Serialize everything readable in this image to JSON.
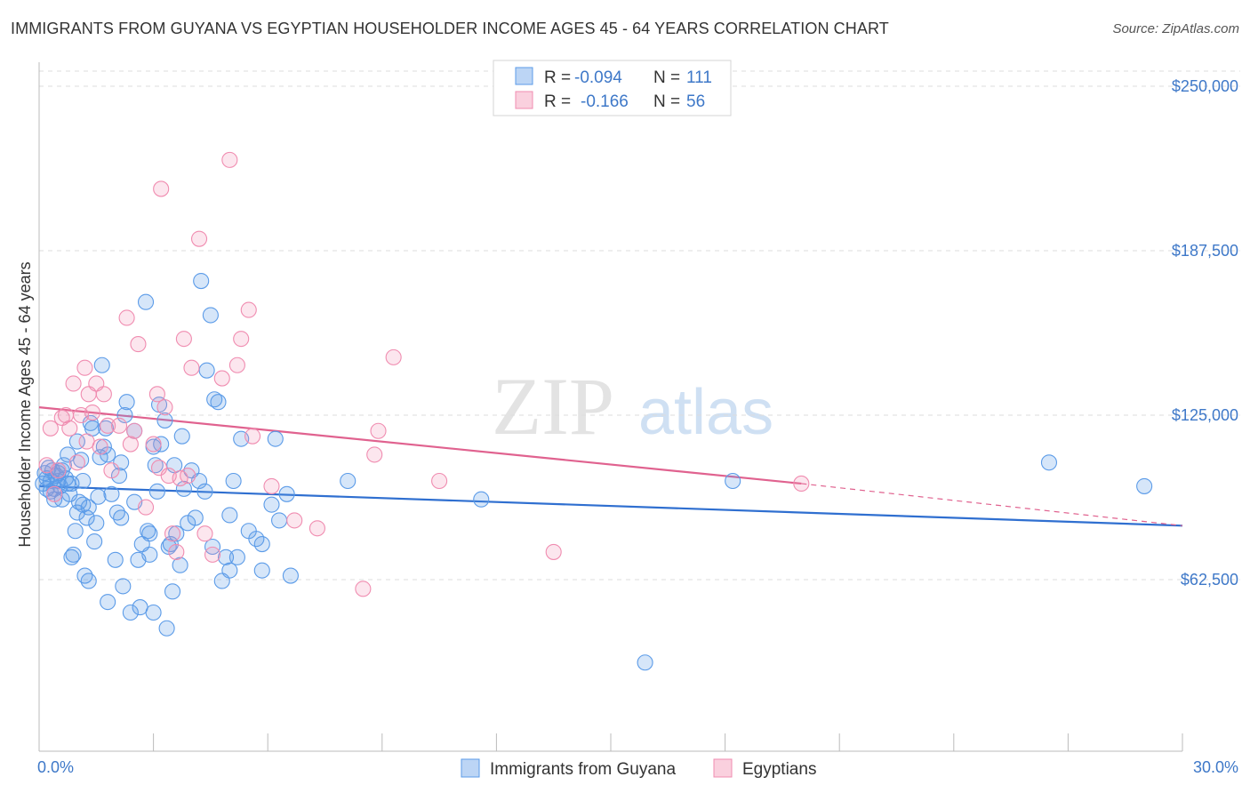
{
  "title": "IMMIGRANTS FROM GUYANA VS EGYPTIAN HOUSEHOLDER INCOME AGES 45 - 64 YEARS CORRELATION CHART",
  "source": "Source: ZipAtlas.com",
  "watermark": {
    "zip": "ZIP",
    "atlas": "atlas"
  },
  "legend": {
    "rows": [
      {
        "r_label": "R =",
        "r_value": "-0.094",
        "n_label": "N =",
        "n_value": "111",
        "color": "#5b9be8"
      },
      {
        "r_label": "R =",
        "r_value": "-0.166",
        "n_label": "N =",
        "n_value": "56",
        "color": "#f08cb0"
      }
    ]
  },
  "bottom_legend": [
    {
      "label": "Immigrants from Guyana",
      "color": "#5b9be8"
    },
    {
      "label": "Egyptians",
      "color": "#f08cb0"
    }
  ],
  "chart_data": {
    "type": "scatter",
    "title": "IMMIGRANTS FROM GUYANA VS EGYPTIAN HOUSEHOLDER INCOME AGES 45 - 64 YEARS CORRELATION CHART",
    "xlabel": "",
    "ylabel": "Householder Income Ages 45 - 64 years",
    "xlim": [
      0,
      30
    ],
    "ylim": [
      0,
      250000
    ],
    "x_tick_labels": [
      "0.0%",
      "30.0%"
    ],
    "y_tick_labels": [
      "$62,500",
      "$125,000",
      "$187,500",
      "$250,000"
    ],
    "y_ticks": [
      62500,
      125000,
      187500,
      250000
    ],
    "grid": true,
    "series": [
      {
        "name": "Immigrants from Guyana",
        "color": "#5b9be8",
        "trend": {
          "x": [
            0,
            30
          ],
          "y": [
            98000,
            83000
          ],
          "dashed_from": null
        },
        "points": [
          [
            0.1,
            99000
          ],
          [
            0.15,
            103000
          ],
          [
            0.2,
            101000
          ],
          [
            0.25,
            105000
          ],
          [
            0.3,
            100000
          ],
          [
            0.35,
            104000
          ],
          [
            0.4,
            97000
          ],
          [
            0.45,
            102000
          ],
          [
            0.5,
            100000
          ],
          [
            0.55,
            98000
          ],
          [
            0.6,
            93000
          ],
          [
            0.65,
            106000
          ],
          [
            0.7,
            101000
          ],
          [
            0.75,
            99000
          ],
          [
            0.8,
            95000
          ],
          [
            0.85,
            71000
          ],
          [
            0.9,
            72000
          ],
          [
            0.95,
            81000
          ],
          [
            1.0,
            88000
          ],
          [
            1.05,
            92000
          ],
          [
            1.1,
            108000
          ],
          [
            1.15,
            91000
          ],
          [
            1.2,
            64000
          ],
          [
            1.25,
            86000
          ],
          [
            1.3,
            90000
          ],
          [
            1.35,
            122000
          ],
          [
            1.4,
            120000
          ],
          [
            1.45,
            77000
          ],
          [
            1.5,
            84000
          ],
          [
            1.6,
            109000
          ],
          [
            1.65,
            144000
          ],
          [
            1.7,
            113000
          ],
          [
            1.75,
            120000
          ],
          [
            1.8,
            54000
          ],
          [
            1.9,
            95000
          ],
          [
            2.0,
            70000
          ],
          [
            2.1,
            102000
          ],
          [
            2.15,
            107000
          ],
          [
            2.2,
            60000
          ],
          [
            2.25,
            125000
          ],
          [
            2.3,
            130000
          ],
          [
            2.4,
            50000
          ],
          [
            2.5,
            119000
          ],
          [
            2.6,
            70000
          ],
          [
            2.65,
            52000
          ],
          [
            2.7,
            76000
          ],
          [
            2.8,
            168000
          ],
          [
            2.85,
            81000
          ],
          [
            2.9,
            80000
          ],
          [
            3.0,
            113000
          ],
          [
            3.05,
            106000
          ],
          [
            3.1,
            96000
          ],
          [
            3.15,
            129000
          ],
          [
            3.2,
            114000
          ],
          [
            3.3,
            123000
          ],
          [
            3.35,
            44000
          ],
          [
            3.4,
            75000
          ],
          [
            3.5,
            58000
          ],
          [
            3.55,
            106000
          ],
          [
            3.6,
            80000
          ],
          [
            3.7,
            68000
          ],
          [
            3.8,
            97000
          ],
          [
            3.9,
            84000
          ],
          [
            4.0,
            104000
          ],
          [
            4.1,
            86000
          ],
          [
            4.25,
            176000
          ],
          [
            4.4,
            142000
          ],
          [
            4.5,
            163000
          ],
          [
            4.6,
            131000
          ],
          [
            4.7,
            130000
          ],
          [
            4.8,
            62000
          ],
          [
            4.9,
            71000
          ],
          [
            5.0,
            66000
          ],
          [
            5.1,
            100000
          ],
          [
            5.2,
            71000
          ],
          [
            5.3,
            116000
          ],
          [
            5.5,
            81000
          ],
          [
            5.7,
            78000
          ],
          [
            5.85,
            76000
          ],
          [
            6.2,
            116000
          ],
          [
            6.3,
            85000
          ],
          [
            6.5,
            95000
          ],
          [
            6.6,
            64000
          ],
          [
            8.1,
            100000
          ],
          [
            11.6,
            93000
          ],
          [
            15.9,
            31000
          ],
          [
            18.2,
            100000
          ],
          [
            26.5,
            107000
          ],
          [
            29.0,
            98000
          ],
          [
            0.3,
            96000
          ],
          [
            1.0,
            115000
          ],
          [
            1.8,
            110000
          ],
          [
            2.5,
            92000
          ],
          [
            3.75,
            117000
          ],
          [
            4.35,
            96000
          ],
          [
            0.6,
            104000
          ],
          [
            1.15,
            100000
          ],
          [
            2.05,
            88000
          ],
          [
            0.2,
            97000
          ],
          [
            0.5,
            103000
          ],
          [
            0.85,
            99000
          ],
          [
            1.55,
            94000
          ],
          [
            2.9,
            72000
          ],
          [
            3.45,
            76000
          ],
          [
            4.2,
            100000
          ],
          [
            5.0,
            87000
          ],
          [
            6.1,
            91000
          ],
          [
            0.4,
            93000
          ],
          [
            1.3,
            62000
          ],
          [
            3.0,
            50000
          ],
          [
            4.55,
            75000
          ],
          [
            5.85,
            66000
          ],
          [
            0.75,
            110000
          ],
          [
            2.15,
            86000
          ]
        ]
      },
      {
        "name": "Egyptians",
        "color": "#f08cb0",
        "trend": {
          "x": [
            0,
            20
          ],
          "y": [
            128000,
            99000
          ],
          "dashed_to": [
            30,
            83000
          ]
        },
        "points": [
          [
            0.2,
            106000
          ],
          [
            0.3,
            120000
          ],
          [
            0.5,
            104000
          ],
          [
            0.6,
            124000
          ],
          [
            0.7,
            125000
          ],
          [
            0.8,
            120000
          ],
          [
            0.9,
            137000
          ],
          [
            1.0,
            107000
          ],
          [
            1.1,
            125000
          ],
          [
            1.2,
            143000
          ],
          [
            1.3,
            133000
          ],
          [
            1.4,
            126000
          ],
          [
            1.5,
            137000
          ],
          [
            1.6,
            113000
          ],
          [
            1.7,
            133000
          ],
          [
            1.8,
            121000
          ],
          [
            1.9,
            104000
          ],
          [
            2.1,
            121000
          ],
          [
            2.3,
            162000
          ],
          [
            2.5,
            119000
          ],
          [
            2.6,
            152000
          ],
          [
            2.8,
            90000
          ],
          [
            3.0,
            114000
          ],
          [
            3.1,
            133000
          ],
          [
            3.2,
            211000
          ],
          [
            3.3,
            128000
          ],
          [
            3.4,
            102000
          ],
          [
            3.5,
            80000
          ],
          [
            3.6,
            73000
          ],
          [
            3.7,
            101000
          ],
          [
            3.8,
            154000
          ],
          [
            3.9,
            102000
          ],
          [
            4.0,
            143000
          ],
          [
            4.2,
            192000
          ],
          [
            4.35,
            80000
          ],
          [
            4.55,
            72000
          ],
          [
            4.8,
            139000
          ],
          [
            5.0,
            222000
          ],
          [
            5.2,
            144000
          ],
          [
            5.3,
            154000
          ],
          [
            5.5,
            165000
          ],
          [
            5.6,
            117000
          ],
          [
            6.1,
            98000
          ],
          [
            6.7,
            85000
          ],
          [
            8.8,
            110000
          ],
          [
            8.9,
            119000
          ],
          [
            9.3,
            147000
          ],
          [
            10.5,
            100000
          ],
          [
            13.5,
            73000
          ],
          [
            0.4,
            95000
          ],
          [
            1.25,
            115000
          ],
          [
            2.4,
            114000
          ],
          [
            3.15,
            105000
          ],
          [
            7.3,
            82000
          ],
          [
            8.5,
            59000
          ],
          [
            20.0,
            99000
          ]
        ]
      }
    ]
  }
}
